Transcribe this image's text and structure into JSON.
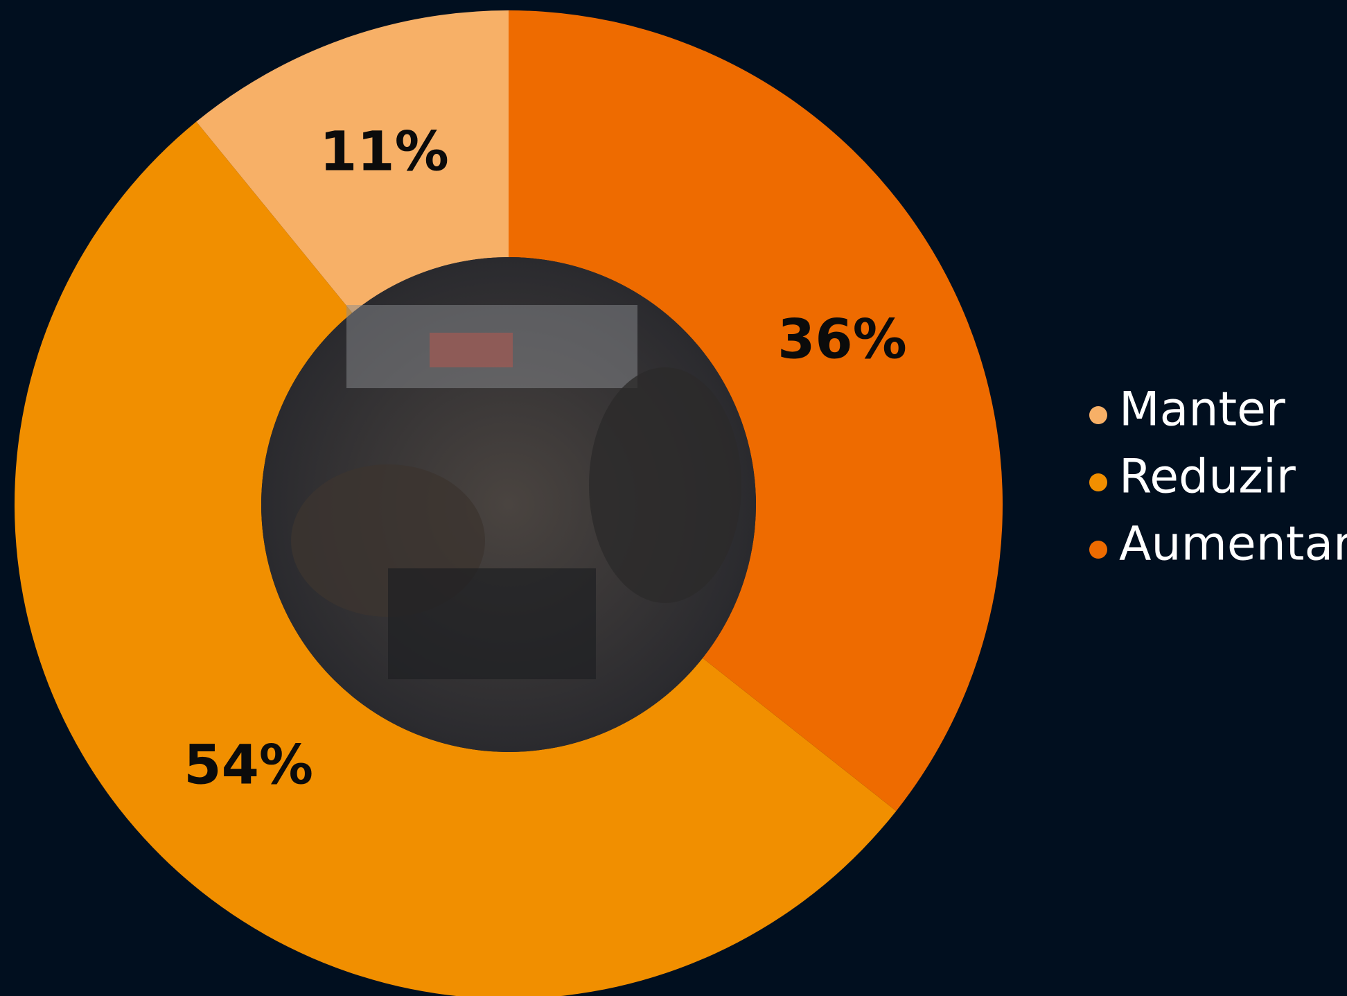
{
  "chart_data": {
    "type": "donut",
    "categories": [
      "Manter",
      "Reduzir",
      "Aumentar"
    ],
    "values": [
      11,
      54,
      36
    ],
    "value_labels": [
      "11%",
      "54%",
      "36%"
    ],
    "colors": [
      "#f7b067",
      "#f18f00",
      "#ee6b00"
    ],
    "legend": "right"
  }
}
